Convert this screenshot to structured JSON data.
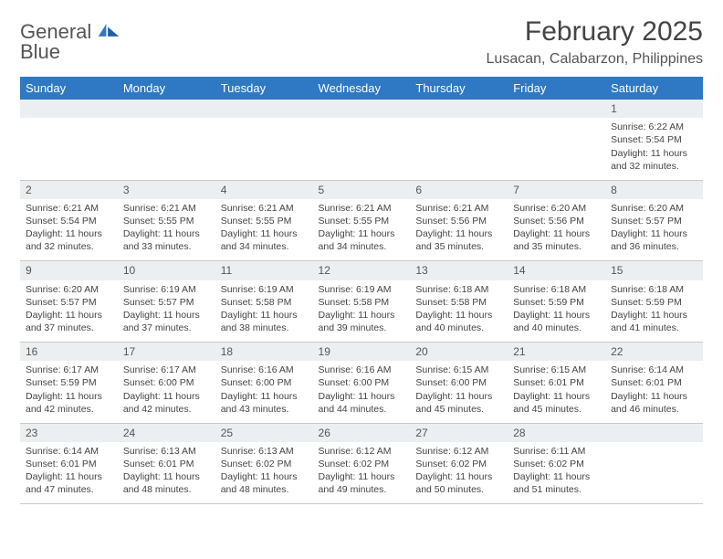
{
  "logo": {
    "line1": "General",
    "line2": "Blue"
  },
  "title": "February 2025",
  "location": "Lusacan, Calabarzon, Philippines",
  "colors": {
    "header_bg": "#2f78c4",
    "header_text": "#ffffff",
    "daynum_bg": "#eceff1",
    "border": "#c9c9c9",
    "text": "#444444",
    "logo_blue": "#2f78c4"
  },
  "day_headers": [
    "Sunday",
    "Monday",
    "Tuesday",
    "Wednesday",
    "Thursday",
    "Friday",
    "Saturday"
  ],
  "weeks": [
    [
      {
        "n": "",
        "t": ""
      },
      {
        "n": "",
        "t": ""
      },
      {
        "n": "",
        "t": ""
      },
      {
        "n": "",
        "t": ""
      },
      {
        "n": "",
        "t": ""
      },
      {
        "n": "",
        "t": ""
      },
      {
        "n": "1",
        "t": "Sunrise: 6:22 AM\nSunset: 5:54 PM\nDaylight: 11 hours and 32 minutes."
      }
    ],
    [
      {
        "n": "2",
        "t": "Sunrise: 6:21 AM\nSunset: 5:54 PM\nDaylight: 11 hours and 32 minutes."
      },
      {
        "n": "3",
        "t": "Sunrise: 6:21 AM\nSunset: 5:55 PM\nDaylight: 11 hours and 33 minutes."
      },
      {
        "n": "4",
        "t": "Sunrise: 6:21 AM\nSunset: 5:55 PM\nDaylight: 11 hours and 34 minutes."
      },
      {
        "n": "5",
        "t": "Sunrise: 6:21 AM\nSunset: 5:55 PM\nDaylight: 11 hours and 34 minutes."
      },
      {
        "n": "6",
        "t": "Sunrise: 6:21 AM\nSunset: 5:56 PM\nDaylight: 11 hours and 35 minutes."
      },
      {
        "n": "7",
        "t": "Sunrise: 6:20 AM\nSunset: 5:56 PM\nDaylight: 11 hours and 35 minutes."
      },
      {
        "n": "8",
        "t": "Sunrise: 6:20 AM\nSunset: 5:57 PM\nDaylight: 11 hours and 36 minutes."
      }
    ],
    [
      {
        "n": "9",
        "t": "Sunrise: 6:20 AM\nSunset: 5:57 PM\nDaylight: 11 hours and 37 minutes."
      },
      {
        "n": "10",
        "t": "Sunrise: 6:19 AM\nSunset: 5:57 PM\nDaylight: 11 hours and 37 minutes."
      },
      {
        "n": "11",
        "t": "Sunrise: 6:19 AM\nSunset: 5:58 PM\nDaylight: 11 hours and 38 minutes."
      },
      {
        "n": "12",
        "t": "Sunrise: 6:19 AM\nSunset: 5:58 PM\nDaylight: 11 hours and 39 minutes."
      },
      {
        "n": "13",
        "t": "Sunrise: 6:18 AM\nSunset: 5:58 PM\nDaylight: 11 hours and 40 minutes."
      },
      {
        "n": "14",
        "t": "Sunrise: 6:18 AM\nSunset: 5:59 PM\nDaylight: 11 hours and 40 minutes."
      },
      {
        "n": "15",
        "t": "Sunrise: 6:18 AM\nSunset: 5:59 PM\nDaylight: 11 hours and 41 minutes."
      }
    ],
    [
      {
        "n": "16",
        "t": "Sunrise: 6:17 AM\nSunset: 5:59 PM\nDaylight: 11 hours and 42 minutes."
      },
      {
        "n": "17",
        "t": "Sunrise: 6:17 AM\nSunset: 6:00 PM\nDaylight: 11 hours and 42 minutes."
      },
      {
        "n": "18",
        "t": "Sunrise: 6:16 AM\nSunset: 6:00 PM\nDaylight: 11 hours and 43 minutes."
      },
      {
        "n": "19",
        "t": "Sunrise: 6:16 AM\nSunset: 6:00 PM\nDaylight: 11 hours and 44 minutes."
      },
      {
        "n": "20",
        "t": "Sunrise: 6:15 AM\nSunset: 6:00 PM\nDaylight: 11 hours and 45 minutes."
      },
      {
        "n": "21",
        "t": "Sunrise: 6:15 AM\nSunset: 6:01 PM\nDaylight: 11 hours and 45 minutes."
      },
      {
        "n": "22",
        "t": "Sunrise: 6:14 AM\nSunset: 6:01 PM\nDaylight: 11 hours and 46 minutes."
      }
    ],
    [
      {
        "n": "23",
        "t": "Sunrise: 6:14 AM\nSunset: 6:01 PM\nDaylight: 11 hours and 47 minutes."
      },
      {
        "n": "24",
        "t": "Sunrise: 6:13 AM\nSunset: 6:01 PM\nDaylight: 11 hours and 48 minutes."
      },
      {
        "n": "25",
        "t": "Sunrise: 6:13 AM\nSunset: 6:02 PM\nDaylight: 11 hours and 48 minutes."
      },
      {
        "n": "26",
        "t": "Sunrise: 6:12 AM\nSunset: 6:02 PM\nDaylight: 11 hours and 49 minutes."
      },
      {
        "n": "27",
        "t": "Sunrise: 6:12 AM\nSunset: 6:02 PM\nDaylight: 11 hours and 50 minutes."
      },
      {
        "n": "28",
        "t": "Sunrise: 6:11 AM\nSunset: 6:02 PM\nDaylight: 11 hours and 51 minutes."
      },
      {
        "n": "",
        "t": ""
      }
    ]
  ]
}
